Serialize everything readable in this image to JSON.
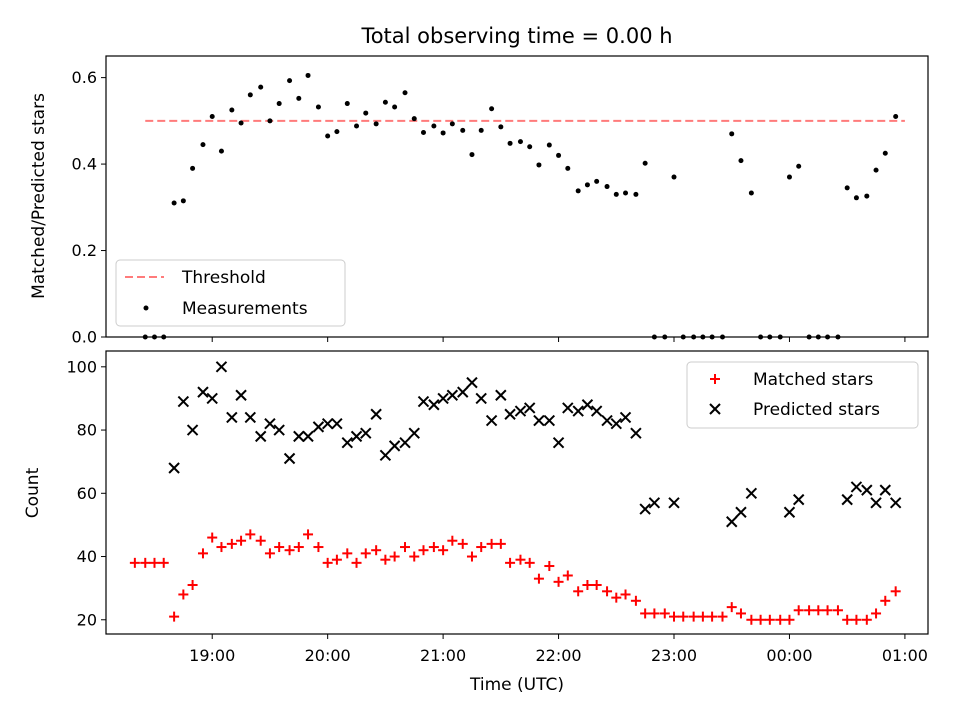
{
  "chart_data": [
    {
      "type": "scatter",
      "title": "Total observing time = 0.00 h",
      "ylabel": "Matched/Predicted stars",
      "ylim": [
        0,
        0.65
      ],
      "yticks": [
        0.0,
        0.2,
        0.4,
        0.6
      ],
      "ytick_labels": [
        "0.0",
        "0.2",
        "0.4",
        "0.6"
      ],
      "xlim_hours": [
        18.08,
        25.2
      ],
      "legend": {
        "placement": "lower-left",
        "entries": [
          "Threshold",
          "Measurements"
        ]
      },
      "threshold": {
        "name": "Threshold",
        "value": 0.5,
        "x_start": 18.42,
        "x_end": 25.0,
        "color": "#ff7b7b"
      },
      "series": [
        {
          "name": "Measurements",
          "color": "#000000",
          "marker": "dot",
          "x": [
            18.42,
            18.5,
            18.58,
            18.67,
            18.75,
            18.83,
            18.92,
            19.0,
            19.08,
            19.17,
            19.25,
            19.33,
            19.42,
            19.5,
            19.58,
            19.67,
            19.75,
            19.83,
            19.92,
            20.0,
            20.08,
            20.17,
            20.25,
            20.33,
            20.42,
            20.5,
            20.58,
            20.67,
            20.75,
            20.83,
            20.92,
            21.0,
            21.08,
            21.17,
            21.25,
            21.33,
            21.42,
            21.5,
            21.58,
            21.67,
            21.75,
            21.83,
            21.92,
            22.0,
            22.08,
            22.17,
            22.25,
            22.33,
            22.42,
            22.5,
            22.58,
            22.67,
            22.75,
            22.83,
            22.92,
            23.0,
            23.08,
            23.17,
            23.25,
            23.33,
            23.42,
            23.5,
            23.58,
            23.67,
            23.75,
            23.83,
            23.92,
            24.0,
            24.08,
            24.17,
            24.25,
            24.33,
            24.42,
            24.5,
            24.58,
            24.67,
            24.75,
            24.83,
            24.92
          ],
          "y": [
            0.0,
            0.0,
            0.0,
            0.31,
            0.315,
            0.39,
            0.445,
            0.51,
            0.43,
            0.525,
            0.495,
            0.56,
            0.578,
            0.5,
            0.54,
            0.593,
            0.552,
            0.605,
            0.532,
            0.465,
            0.475,
            0.54,
            0.488,
            0.518,
            0.493,
            0.543,
            0.532,
            0.565,
            0.505,
            0.473,
            0.488,
            0.472,
            0.493,
            0.478,
            0.422,
            0.478,
            0.528,
            0.486,
            0.448,
            0.452,
            0.44,
            0.398,
            0.444,
            0.42,
            0.39,
            0.338,
            0.352,
            0.36,
            0.348,
            0.33,
            0.333,
            0.33,
            0.402,
            0.0,
            0.0,
            0.37,
            0.0,
            0.0,
            0.0,
            0.0,
            0.0,
            0.47,
            0.408,
            0.333,
            0.0,
            0.0,
            0.0,
            0.37,
            0.395,
            0.0,
            0.0,
            0.0,
            0.0,
            0.345,
            0.322,
            0.326,
            0.386,
            0.425,
            0.51
          ]
        }
      ]
    },
    {
      "type": "scatter",
      "xlabel": "Time (UTC)",
      "ylabel": "Count",
      "ylim": [
        15.5,
        105
      ],
      "yticks": [
        20,
        40,
        60,
        80,
        100
      ],
      "ytick_labels": [
        "20",
        "40",
        "60",
        "80",
        "100"
      ],
      "xlim_hours": [
        18.08,
        25.2
      ],
      "xticks_hours": [
        19,
        20,
        21,
        22,
        23,
        24,
        25
      ],
      "xtick_labels": [
        "19:00",
        "20:00",
        "21:00",
        "22:00",
        "23:00",
        "00:00",
        "01:00"
      ],
      "legend": {
        "placement": "top-right",
        "entries": [
          "Matched stars",
          "Predicted stars"
        ]
      },
      "series": [
        {
          "name": "Matched stars",
          "color": "#ff0000",
          "marker": "plus",
          "x": [
            18.33,
            18.42,
            18.5,
            18.58,
            18.67,
            18.75,
            18.83,
            18.92,
            19.0,
            19.08,
            19.17,
            19.25,
            19.33,
            19.42,
            19.5,
            19.58,
            19.67,
            19.75,
            19.83,
            19.92,
            20.0,
            20.08,
            20.17,
            20.25,
            20.33,
            20.42,
            20.5,
            20.58,
            20.67,
            20.75,
            20.83,
            20.92,
            21.0,
            21.08,
            21.17,
            21.25,
            21.33,
            21.42,
            21.5,
            21.58,
            21.67,
            21.75,
            21.83,
            21.92,
            22.0,
            22.08,
            22.17,
            22.25,
            22.33,
            22.42,
            22.5,
            22.58,
            22.67,
            22.75,
            22.83,
            22.92,
            23.0,
            23.08,
            23.17,
            23.25,
            23.33,
            23.42,
            23.5,
            23.58,
            23.67,
            23.75,
            23.83,
            23.92,
            24.0,
            24.08,
            24.17,
            24.25,
            24.33,
            24.42,
            24.5,
            24.58,
            24.67,
            24.75,
            24.83,
            24.92
          ],
          "y": [
            38,
            38,
            38,
            38,
            21,
            28,
            31,
            41,
            46,
            43,
            44,
            45,
            47,
            45,
            41,
            43,
            42,
            43,
            47,
            43,
            38,
            39,
            41,
            38,
            41,
            42,
            39,
            40,
            43,
            40,
            42,
            43,
            42,
            45,
            44,
            40,
            43,
            44,
            44,
            38,
            39,
            38,
            33,
            37,
            32,
            34,
            29,
            31,
            31,
            29,
            27,
            28,
            26,
            22,
            22,
            22,
            21,
            21,
            21,
            21,
            21,
            21,
            24,
            22,
            20,
            20,
            20,
            20,
            20,
            23,
            23,
            23,
            23,
            23,
            20,
            20,
            20,
            22,
            26,
            29
          ]
        },
        {
          "name": "Predicted stars",
          "color": "#000000",
          "marker": "x",
          "x": [
            18.67,
            18.75,
            18.83,
            18.92,
            19.0,
            19.08,
            19.17,
            19.25,
            19.33,
            19.42,
            19.5,
            19.58,
            19.67,
            19.75,
            19.83,
            19.92,
            20.0,
            20.08,
            20.17,
            20.25,
            20.33,
            20.42,
            20.5,
            20.58,
            20.67,
            20.75,
            20.83,
            20.92,
            21.0,
            21.08,
            21.17,
            21.25,
            21.33,
            21.42,
            21.5,
            21.58,
            21.67,
            21.75,
            21.83,
            21.92,
            22.0,
            22.08,
            22.17,
            22.25,
            22.33,
            22.42,
            22.5,
            22.58,
            22.67,
            22.75,
            22.83,
            23.0,
            23.5,
            23.58,
            23.67,
            24.0,
            24.08,
            24.5,
            24.58,
            24.67,
            24.75,
            24.83,
            24.92
          ],
          "y": [
            68,
            89,
            80,
            92,
            90,
            100,
            84,
            91,
            84,
            78,
            82,
            80,
            71,
            78,
            78,
            81,
            82,
            82,
            76,
            78,
            79,
            85,
            72,
            75,
            76,
            79,
            89,
            88,
            90,
            91,
            92,
            95,
            90,
            83,
            91,
            85,
            86,
            87,
            83,
            83,
            76,
            87,
            86,
            88,
            86,
            83,
            82,
            84,
            79,
            55,
            57,
            57,
            51,
            54,
            60,
            54,
            58,
            58,
            62,
            61,
            57,
            61,
            57
          ]
        }
      ]
    }
  ]
}
